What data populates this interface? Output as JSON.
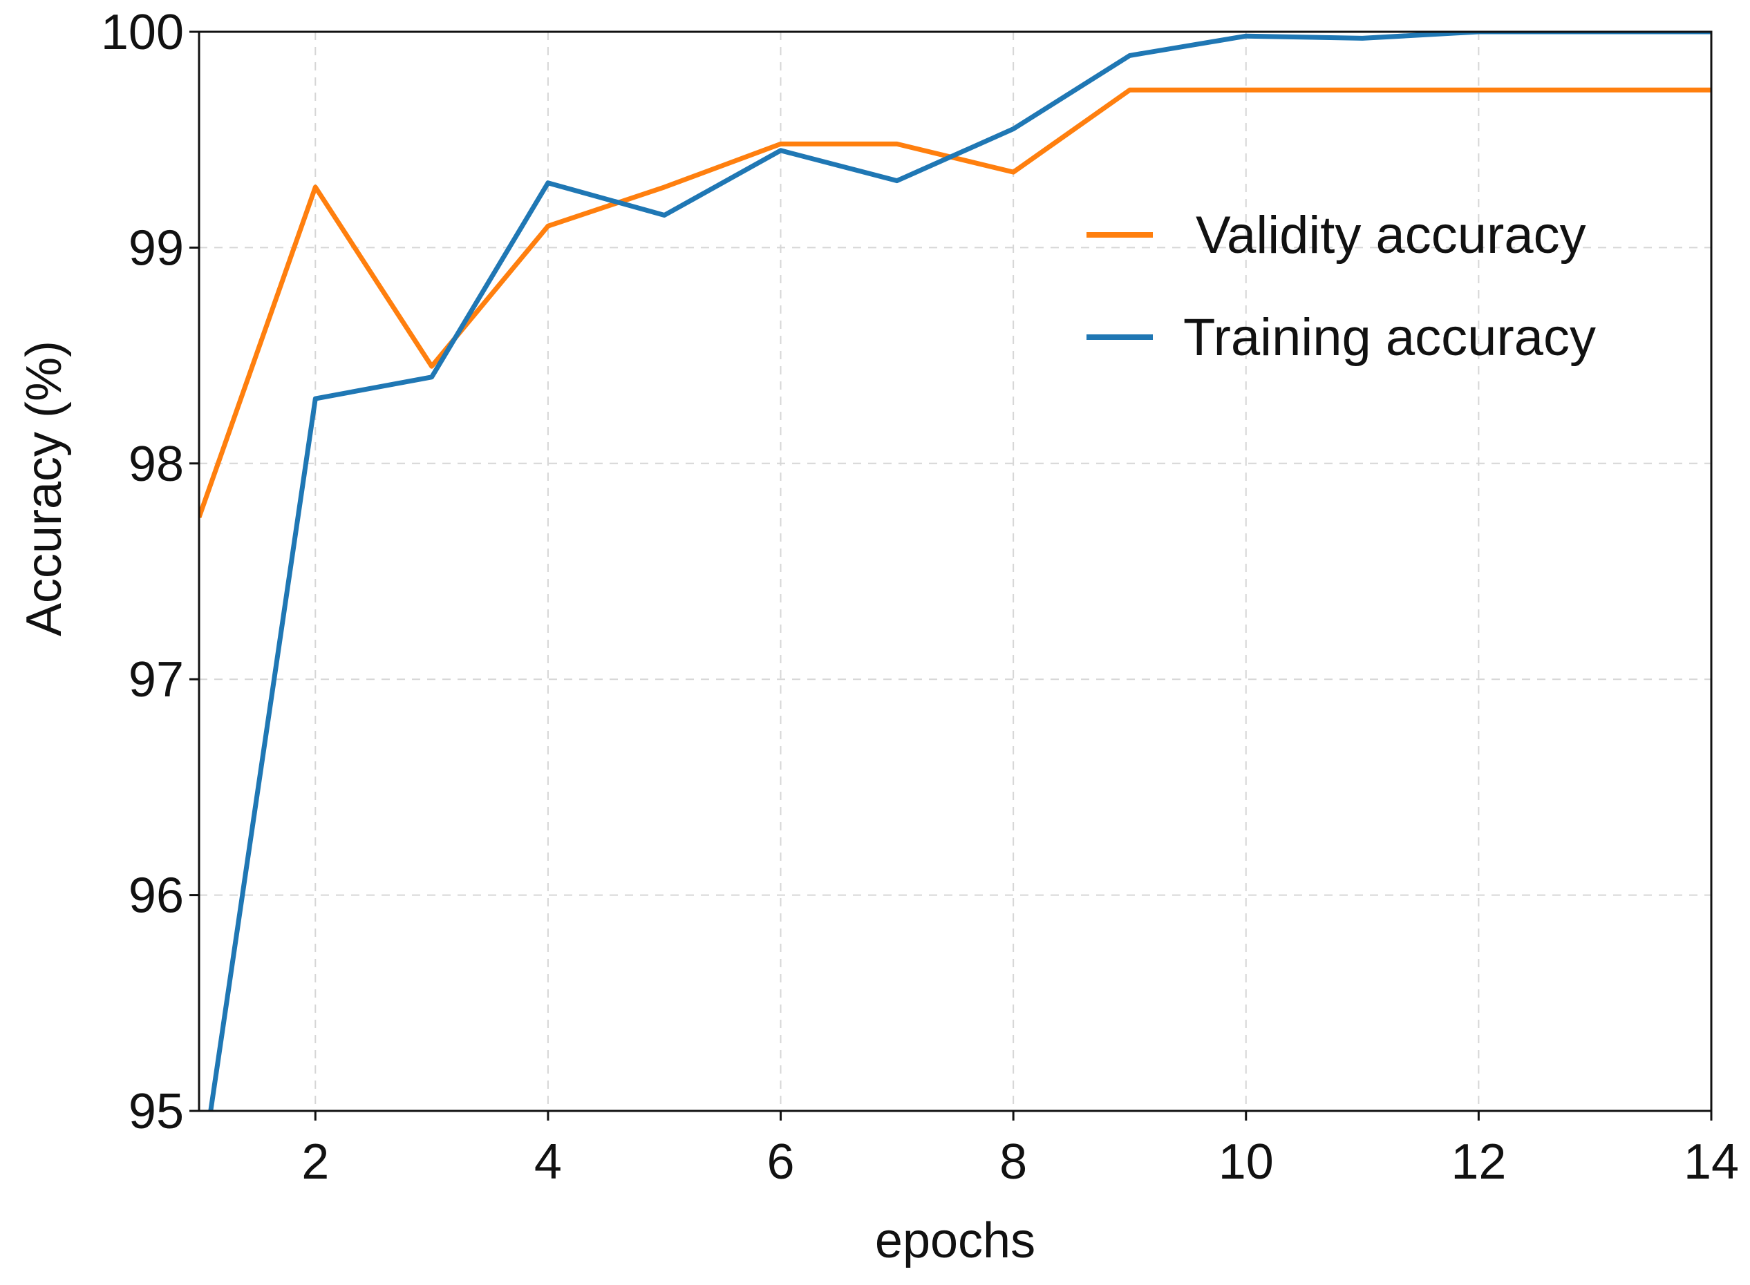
{
  "chart_data": {
    "type": "line",
    "xlabel": "epochs",
    "ylabel": "Accuracy (%)",
    "xlim": [
      1,
      14
    ],
    "ylim": [
      95,
      100
    ],
    "xticks": [
      2,
      4,
      6,
      8,
      10,
      12,
      14
    ],
    "yticks": [
      95,
      96,
      97,
      98,
      99,
      100
    ],
    "grid": true,
    "legend_position": "right",
    "series": [
      {
        "name": "Validity accuracy",
        "color": "#ff7f0e",
        "points": [
          [
            1,
            97.75
          ],
          [
            2,
            99.28
          ],
          [
            3,
            98.45
          ],
          [
            4,
            99.1
          ],
          [
            5,
            99.28
          ],
          [
            6,
            99.48
          ],
          [
            7,
            99.48
          ],
          [
            8,
            99.35
          ],
          [
            9,
            99.73
          ],
          [
            10,
            99.73
          ],
          [
            11,
            99.73
          ],
          [
            12,
            99.73
          ],
          [
            13,
            99.73
          ],
          [
            14,
            99.73
          ]
        ]
      },
      {
        "name": "Training accuracy",
        "color": "#1f77b4",
        "points": [
          [
            1.1,
            95.0
          ],
          [
            2,
            98.3
          ],
          [
            3,
            98.4
          ],
          [
            4,
            99.3
          ],
          [
            5,
            99.15
          ],
          [
            6,
            99.45
          ],
          [
            7,
            99.31
          ],
          [
            8,
            99.55
          ],
          [
            9,
            99.89
          ],
          [
            10,
            99.98
          ],
          [
            11,
            99.97
          ],
          [
            12,
            100.0
          ],
          [
            13,
            100.0
          ],
          [
            14,
            100.0
          ]
        ]
      }
    ]
  }
}
